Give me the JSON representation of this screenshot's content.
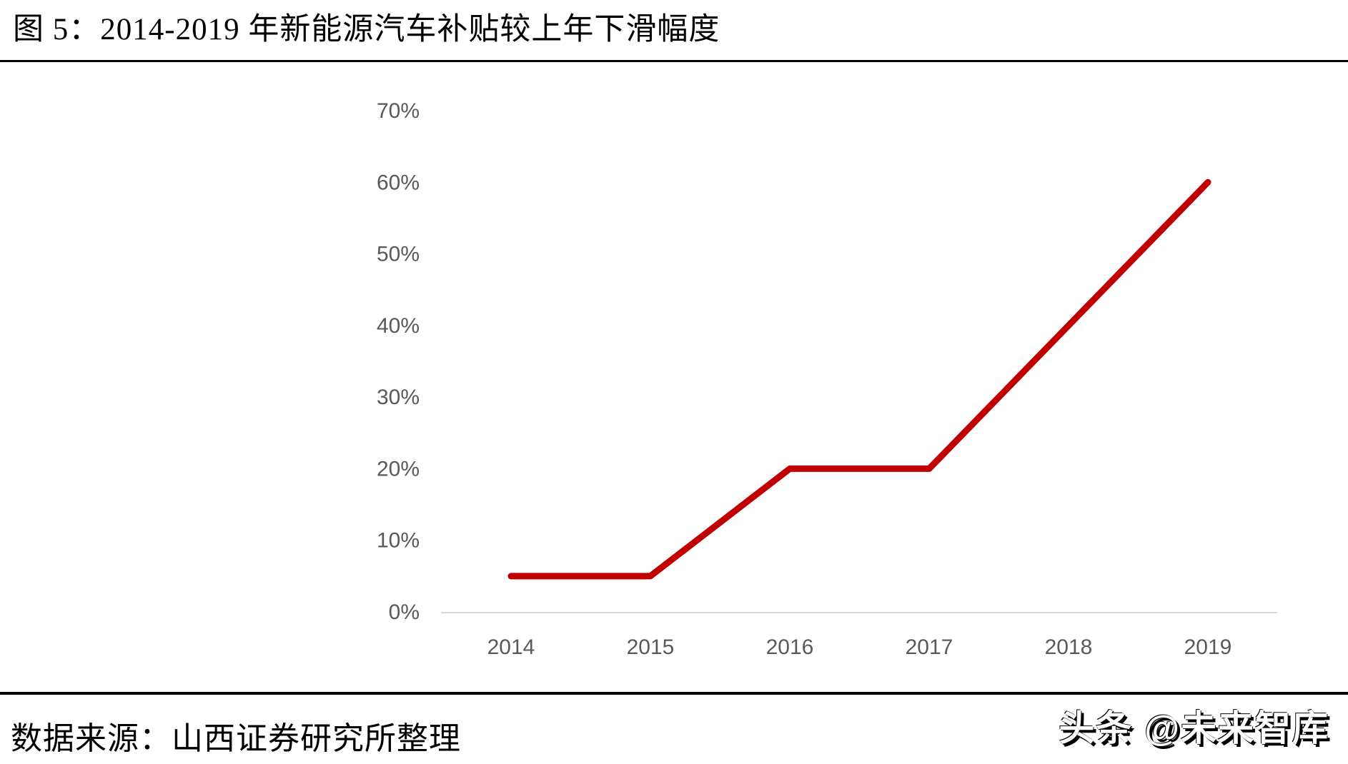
{
  "page": {
    "title": "图 5：2014-2019 年新能源汽车补贴较上年下滑幅度",
    "source": "数据来源：山西证券研究所整理",
    "watermark": "头条 @未来智库"
  },
  "colors": {
    "line": "#c00000",
    "axis_text": "#595959",
    "axis_line": "#d9d9d9",
    "divider": "#000000"
  },
  "chart_data": {
    "type": "line",
    "title": "图 5：2014-2019 年新能源汽车补贴较上年下滑幅度",
    "categories": [
      "2014",
      "2015",
      "2016",
      "2017",
      "2018",
      "2019"
    ],
    "values": [
      5,
      5,
      20,
      20,
      40,
      60
    ],
    "yticks": [
      "0%",
      "10%",
      "20%",
      "30%",
      "40%",
      "50%",
      "60%",
      "70%"
    ],
    "ylim": [
      0,
      70
    ],
    "unit": "%",
    "grid": false,
    "legend": false,
    "xlabel": "",
    "ylabel": ""
  }
}
